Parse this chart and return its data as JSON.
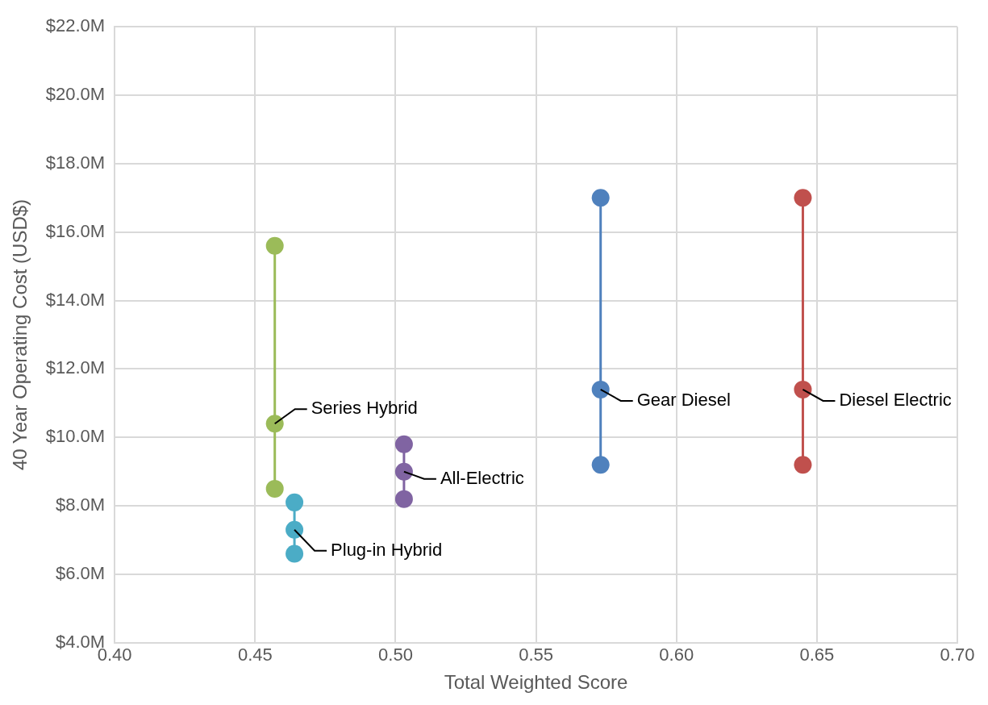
{
  "chart_data": {
    "type": "line",
    "xlabel": "Total Weighted Score",
    "ylabel": "40 Year Operating Cost (USD$)",
    "xlim": [
      0.4,
      0.7
    ],
    "xticks": [
      {
        "value": 0.4,
        "label": "0.40"
      },
      {
        "value": 0.45,
        "label": "0.45"
      },
      {
        "value": 0.5,
        "label": "0.50"
      },
      {
        "value": 0.55,
        "label": "0.55"
      },
      {
        "value": 0.6,
        "label": "0.60"
      },
      {
        "value": 0.65,
        "label": "0.65"
      },
      {
        "value": 0.7,
        "label": "0.70"
      }
    ],
    "ylim": [
      4,
      22
    ],
    "yticks": [
      {
        "value": 4,
        "label": "$4.0M"
      },
      {
        "value": 6,
        "label": "$6.0M"
      },
      {
        "value": 8,
        "label": "$8.0M"
      },
      {
        "value": 10,
        "label": "$10.0M"
      },
      {
        "value": 12,
        "label": "$12.0M"
      },
      {
        "value": 14,
        "label": "$14.0M"
      },
      {
        "value": 16,
        "label": "$16.0M"
      },
      {
        "value": 18,
        "label": "$18.0M"
      },
      {
        "value": 20,
        "label": "$20.0M"
      },
      {
        "value": 22,
        "label": "$22.0M"
      }
    ],
    "grid": true,
    "legend": false,
    "marker": "circle",
    "line_style": "solid",
    "series": [
      {
        "name": "Series Hybrid",
        "color": "#9bbb59",
        "x": [
          0.457,
          0.457,
          0.457
        ],
        "values": [
          15.6,
          10.4,
          8.5
        ]
      },
      {
        "name": "Plug-in Hybrid",
        "color": "#4bacc6",
        "x": [
          0.464,
          0.464,
          0.464
        ],
        "values": [
          8.1,
          7.3,
          6.6
        ]
      },
      {
        "name": "All-Electric",
        "color": "#8064a2",
        "x": [
          0.503,
          0.503,
          0.503
        ],
        "values": [
          9.8,
          9.0,
          8.2
        ]
      },
      {
        "name": "Gear Diesel",
        "color": "#4f81bd",
        "x": [
          0.573,
          0.573,
          0.573
        ],
        "values": [
          17.0,
          11.4,
          9.2
        ]
      },
      {
        "name": "Diesel Electric",
        "color": "#c0504d",
        "x": [
          0.645,
          0.645,
          0.645
        ],
        "values": [
          17.0,
          11.4,
          9.2
        ]
      }
    ]
  }
}
